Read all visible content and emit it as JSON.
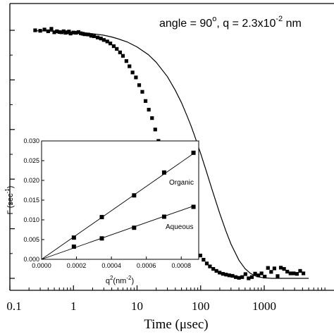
{
  "chart_data": [
    {
      "type": "scatter",
      "title": "",
      "annotation": {
        "prefix": "angle = 90",
        "degree": "o",
        "middle": ", q = 2.3x10",
        "exponent": "-2",
        "suffix": " nm"
      },
      "xlabel": "Time (μsec)",
      "ylabel": "",
      "xscale": "log",
      "xlim": [
        0.1,
        5000
      ],
      "xticks": [
        "0.1",
        "1",
        "10",
        "100",
        "1000"
      ],
      "xtick_values": [
        0.1,
        1,
        10,
        100,
        1000
      ],
      "ylim": [
        0,
        1
      ],
      "ytick_values": [
        0,
        0.2,
        0.4,
        0.6,
        0.8,
        1.0
      ],
      "series": [
        {
          "marker": "square",
          "x": [
            0.25,
            0.3,
            0.35,
            0.4,
            0.45,
            0.5,
            0.55,
            0.6,
            0.65,
            0.7,
            0.75,
            0.8,
            0.85,
            0.9,
            1.0,
            1.1,
            1.2,
            1.3,
            1.4,
            1.5,
            1.7,
            1.9,
            2.1,
            2.4,
            2.7,
            3.0,
            3.4,
            3.8,
            4.3,
            4.8,
            5.4,
            6.0,
            6.8,
            7.6,
            8.5,
            9.6,
            10.8,
            12.1,
            13.6,
            15.3,
            17.2,
            19.3,
            21.7,
            24.4,
            27.4,
            30.8,
            34.6,
            38.9,
            43.7,
            49.1,
            55.2,
            62.0,
            69.7,
            78.3,
            88.0,
            98.9,
            111,
            125,
            140,
            158,
            177,
            199,
            224,
            251,
            282,
            317,
            356,
            400,
            450,
            506,
            568,
            639,
            718,
            806,
            906,
            1018,
            1144,
            1285,
            1444,
            1623,
            1824,
            2049,
            2303,
            2588,
            2908,
            3268,
            3672,
            4127
          ],
          "y": [
            1.0,
            0.998,
            1.003,
            0.996,
            1.006,
            0.992,
            0.996,
            0.993,
            0.992,
            0.996,
            0.99,
            0.992,
            0.995,
            0.987,
            0.991,
            0.99,
            0.993,
            0.988,
            0.986,
            0.984,
            0.983,
            0.978,
            0.976,
            0.971,
            0.967,
            0.961,
            0.955,
            0.947,
            0.936,
            0.925,
            0.911,
            0.897,
            0.876,
            0.855,
            0.83,
            0.81,
            0.779,
            0.752,
            0.715,
            0.68,
            0.646,
            0.6,
            0.554,
            0.509,
            0.459,
            0.416,
            0.37,
            0.333,
            0.291,
            0.254,
            0.22,
            0.189,
            0.16,
            0.135,
            0.113,
            0.092,
            0.075,
            0.06,
            0.048,
            0.038,
            0.03,
            0.023,
            0.018,
            0.015,
            0.012,
            0.01,
            0.005,
            0.002,
            0.005,
            0.017,
            0.0,
            0.005,
            0.019,
            0.012,
            0.02,
            0.007,
            0.042,
            0.026,
            0.04,
            0.009,
            0.043,
            0.038,
            0.027,
            0.02,
            0.02,
            0.018,
            0.03,
            0.02
          ]
        },
        {
          "type": "line",
          "x": [
            0.25,
            0.3,
            0.4,
            0.5,
            0.7,
            1,
            1.5,
            2,
            3,
            4,
            5,
            7,
            10,
            15,
            20,
            30,
            40,
            50,
            60,
            70,
            80,
            100,
            120,
            150,
            200,
            250,
            300,
            400,
            500,
            600,
            700,
            800,
            1000,
            1300,
            1700,
            2500,
            3500,
            5000
          ],
          "y": [
            0.998,
            0.998,
            0.997,
            0.996,
            0.995,
            0.993,
            0.99,
            0.986,
            0.98,
            0.973,
            0.966,
            0.953,
            0.933,
            0.902,
            0.871,
            0.813,
            0.758,
            0.708,
            0.66,
            0.617,
            0.576,
            0.503,
            0.44,
            0.361,
            0.261,
            0.19,
            0.138,
            0.073,
            0.039,
            0.021,
            0.011,
            0.006,
            0.002,
            0.0,
            0.0,
            0.0,
            0.0,
            0.0
          ]
        }
      ]
    },
    {
      "type": "scatter",
      "xlabel": {
        "base": "q",
        "sup1": "2",
        "mid": "(nm",
        "sup2": "-2",
        "end": ")"
      },
      "ylabel": {
        "base": "Γ (sec",
        "sup": "-1",
        "end": ")"
      },
      "xlim": [
        0,
        0.0009
      ],
      "ylim": [
        0,
        0.03
      ],
      "xticks": [
        "0.0000",
        "0.0002",
        "0.0004",
        "0.0006",
        "0.0008"
      ],
      "xtick_values": [
        0,
        0.0002,
        0.0004,
        0.0006,
        0.0008
      ],
      "yticks": [
        "0.000",
        "0.005",
        "0.010",
        "0.015",
        "0.020",
        "0.025",
        "0.030"
      ],
      "ytick_values": [
        0,
        0.005,
        0.01,
        0.015,
        0.02,
        0.025,
        0.03
      ],
      "series": [
        {
          "name": "Organic",
          "x": [
            0.000185,
            0.000345,
            0.00053,
            0.000702,
            0.00087
          ],
          "y": [
            0.0055,
            0.0107,
            0.0162,
            0.022,
            0.027
          ],
          "fit": [
            [
              0,
              0
            ],
            [
              0.00087,
              0.0268
            ]
          ]
        },
        {
          "name": "Aqueous",
          "x": [
            0.000185,
            0.000345,
            0.00053,
            0.000702,
            0.00087
          ],
          "y": [
            0.0032,
            0.0053,
            0.008,
            0.0108,
            0.0133
          ],
          "fit": [
            [
              0,
              0
            ],
            [
              0.00087,
              0.0135
            ]
          ]
        }
      ]
    }
  ]
}
